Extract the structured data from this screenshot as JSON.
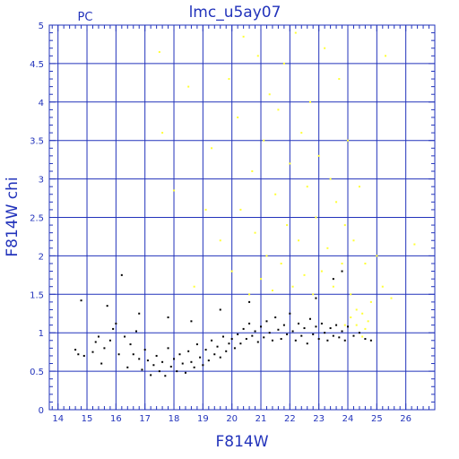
{
  "chart_data": {
    "type": "scatter",
    "title": "lmc_u5ay07",
    "corner_label": "PC",
    "xlabel": "F814W",
    "ylabel": "F814W  chi",
    "xlim": [
      13.7,
      27
    ],
    "ylim": [
      0,
      5
    ],
    "xticks": [
      "14",
      "15",
      "16",
      "17",
      "18",
      "19",
      "20",
      "21",
      "22",
      "23",
      "24",
      "25",
      "26"
    ],
    "yticks": [
      "0",
      "0.5",
      "1",
      "1.5",
      "2",
      "2.5",
      "3",
      "3.5",
      "4",
      "4.5",
      "5"
    ],
    "grid": true,
    "colors": {
      "axis": "#2233bb",
      "grid": "#2233bb",
      "good_stars": "#000000",
      "flagged_stars": "#ffff33"
    },
    "series": [
      {
        "color_key": "good_stars",
        "points": [
          [
            14.6,
            0.78
          ],
          [
            14.7,
            0.72
          ],
          [
            14.8,
            1.42
          ],
          [
            14.9,
            0.7
          ],
          [
            15.2,
            0.75
          ],
          [
            15.3,
            0.88
          ],
          [
            15.4,
            0.95
          ],
          [
            15.5,
            0.6
          ],
          [
            15.6,
            0.8
          ],
          [
            15.7,
            1.35
          ],
          [
            15.8,
            0.9
          ],
          [
            15.9,
            1.05
          ],
          [
            16.0,
            1.12
          ],
          [
            16.1,
            0.72
          ],
          [
            16.2,
            1.75
          ],
          [
            16.3,
            0.95
          ],
          [
            16.4,
            0.55
          ],
          [
            16.5,
            0.85
          ],
          [
            16.6,
            0.72
          ],
          [
            16.7,
            1.02
          ],
          [
            16.8,
            0.66
          ],
          [
            16.9,
            0.52
          ],
          [
            17.0,
            0.78
          ],
          [
            17.1,
            0.64
          ],
          [
            17.2,
            0.45
          ],
          [
            17.3,
            0.58
          ],
          [
            17.4,
            0.7
          ],
          [
            17.5,
            0.5
          ],
          [
            17.6,
            0.62
          ],
          [
            17.7,
            0.44
          ],
          [
            17.8,
            0.8
          ],
          [
            17.9,
            0.56
          ],
          [
            18.0,
            0.66
          ],
          [
            18.1,
            0.5
          ],
          [
            18.2,
            0.72
          ],
          [
            18.3,
            0.6
          ],
          [
            18.4,
            0.48
          ],
          [
            18.5,
            0.76
          ],
          [
            18.6,
            0.62
          ],
          [
            18.7,
            0.55
          ],
          [
            18.8,
            0.85
          ],
          [
            18.9,
            0.68
          ],
          [
            19.0,
            0.58
          ],
          [
            19.1,
            0.78
          ],
          [
            19.2,
            0.64
          ],
          [
            19.3,
            0.9
          ],
          [
            19.4,
            0.72
          ],
          [
            19.5,
            0.82
          ],
          [
            19.6,
            0.68
          ],
          [
            19.7,
            0.95
          ],
          [
            19.8,
            0.76
          ],
          [
            19.9,
            0.86
          ],
          [
            20.0,
            0.92
          ],
          [
            20.1,
            0.8
          ],
          [
            20.2,
            0.98
          ],
          [
            20.3,
            0.86
          ],
          [
            20.4,
            1.05
          ],
          [
            20.5,
            0.92
          ],
          [
            20.6,
            1.12
          ],
          [
            20.7,
            0.96
          ],
          [
            20.8,
            1.02
          ],
          [
            20.9,
            0.88
          ],
          [
            21.0,
            1.08
          ],
          [
            21.1,
            0.94
          ],
          [
            21.2,
            1.15
          ],
          [
            21.3,
            1.0
          ],
          [
            21.4,
            0.9
          ],
          [
            21.5,
            1.2
          ],
          [
            21.6,
            1.04
          ],
          [
            21.7,
            0.92
          ],
          [
            21.8,
            1.1
          ],
          [
            21.9,
            0.98
          ],
          [
            22.0,
            1.25
          ],
          [
            22.1,
            1.02
          ],
          [
            22.2,
            0.9
          ],
          [
            22.3,
            1.12
          ],
          [
            22.4,
            0.96
          ],
          [
            22.5,
            1.06
          ],
          [
            22.6,
            0.86
          ],
          [
            22.7,
            1.18
          ],
          [
            22.8,
            0.98
          ],
          [
            22.9,
            1.08
          ],
          [
            23.0,
            0.92
          ],
          [
            23.1,
            1.12
          ],
          [
            23.2,
            1.0
          ],
          [
            23.3,
            0.9
          ],
          [
            23.4,
            1.06
          ],
          [
            23.5,
            0.96
          ],
          [
            23.6,
            1.1
          ],
          [
            23.7,
            0.94
          ],
          [
            23.8,
            1.02
          ],
          [
            23.9,
            0.9
          ],
          [
            24.0,
            1.08
          ],
          [
            24.2,
            0.96
          ],
          [
            24.4,
            1.0
          ],
          [
            24.6,
            0.92
          ],
          [
            24.8,
            0.9
          ],
          [
            23.8,
            1.8
          ],
          [
            23.5,
            1.7
          ],
          [
            22.9,
            1.45
          ],
          [
            20.6,
            1.4
          ],
          [
            19.6,
            1.3
          ],
          [
            18.6,
            1.15
          ],
          [
            17.8,
            1.2
          ],
          [
            16.8,
            1.25
          ]
        ]
      },
      {
        "color_key": "flagged_stars",
        "points": [
          [
            17.5,
            4.65
          ],
          [
            17.6,
            3.6
          ],
          [
            18.0,
            2.85
          ],
          [
            18.5,
            4.2
          ],
          [
            18.7,
            1.6
          ],
          [
            19.1,
            2.6
          ],
          [
            19.3,
            3.4
          ],
          [
            19.6,
            2.2
          ],
          [
            19.9,
            4.3
          ],
          [
            20.0,
            1.8
          ],
          [
            20.2,
            3.8
          ],
          [
            20.3,
            2.6
          ],
          [
            20.4,
            4.85
          ],
          [
            20.6,
            1.5
          ],
          [
            20.7,
            3.1
          ],
          [
            20.8,
            2.3
          ],
          [
            20.9,
            4.6
          ],
          [
            21.0,
            1.7
          ],
          [
            21.1,
            3.5
          ],
          [
            21.2,
            2.0
          ],
          [
            21.3,
            4.1
          ],
          [
            21.4,
            1.55
          ],
          [
            21.5,
            2.8
          ],
          [
            21.6,
            3.9
          ],
          [
            21.7,
            1.9
          ],
          [
            21.8,
            4.5
          ],
          [
            21.9,
            2.4
          ],
          [
            22.0,
            3.2
          ],
          [
            22.1,
            1.6
          ],
          [
            22.2,
            4.9
          ],
          [
            22.3,
            2.2
          ],
          [
            22.4,
            3.6
          ],
          [
            22.5,
            1.75
          ],
          [
            22.6,
            2.9
          ],
          [
            22.7,
            4.0
          ],
          [
            22.8,
            1.5
          ],
          [
            22.9,
            2.5
          ],
          [
            23.0,
            3.3
          ],
          [
            23.1,
            1.8
          ],
          [
            23.2,
            4.7
          ],
          [
            23.3,
            2.1
          ],
          [
            23.4,
            3.0
          ],
          [
            23.5,
            1.6
          ],
          [
            23.6,
            2.7
          ],
          [
            23.7,
            4.3
          ],
          [
            23.8,
            1.9
          ],
          [
            23.9,
            2.4
          ],
          [
            24.0,
            3.5
          ],
          [
            24.1,
            1.5
          ],
          [
            24.2,
            2.2
          ],
          [
            24.3,
            1.3
          ],
          [
            24.4,
            2.9
          ],
          [
            24.5,
            1.25
          ],
          [
            24.6,
            1.9
          ],
          [
            24.7,
            1.15
          ],
          [
            24.8,
            1.4
          ],
          [
            25.0,
            2.0
          ],
          [
            25.2,
            1.6
          ],
          [
            25.3,
            4.6
          ],
          [
            25.5,
            1.45
          ],
          [
            26.3,
            2.15
          ],
          [
            24.6,
            1.05
          ],
          [
            24.3,
            1.1
          ],
          [
            24.1,
            1.2
          ],
          [
            23.9,
            1.1
          ],
          [
            24.5,
            0.95
          ]
        ]
      }
    ]
  }
}
